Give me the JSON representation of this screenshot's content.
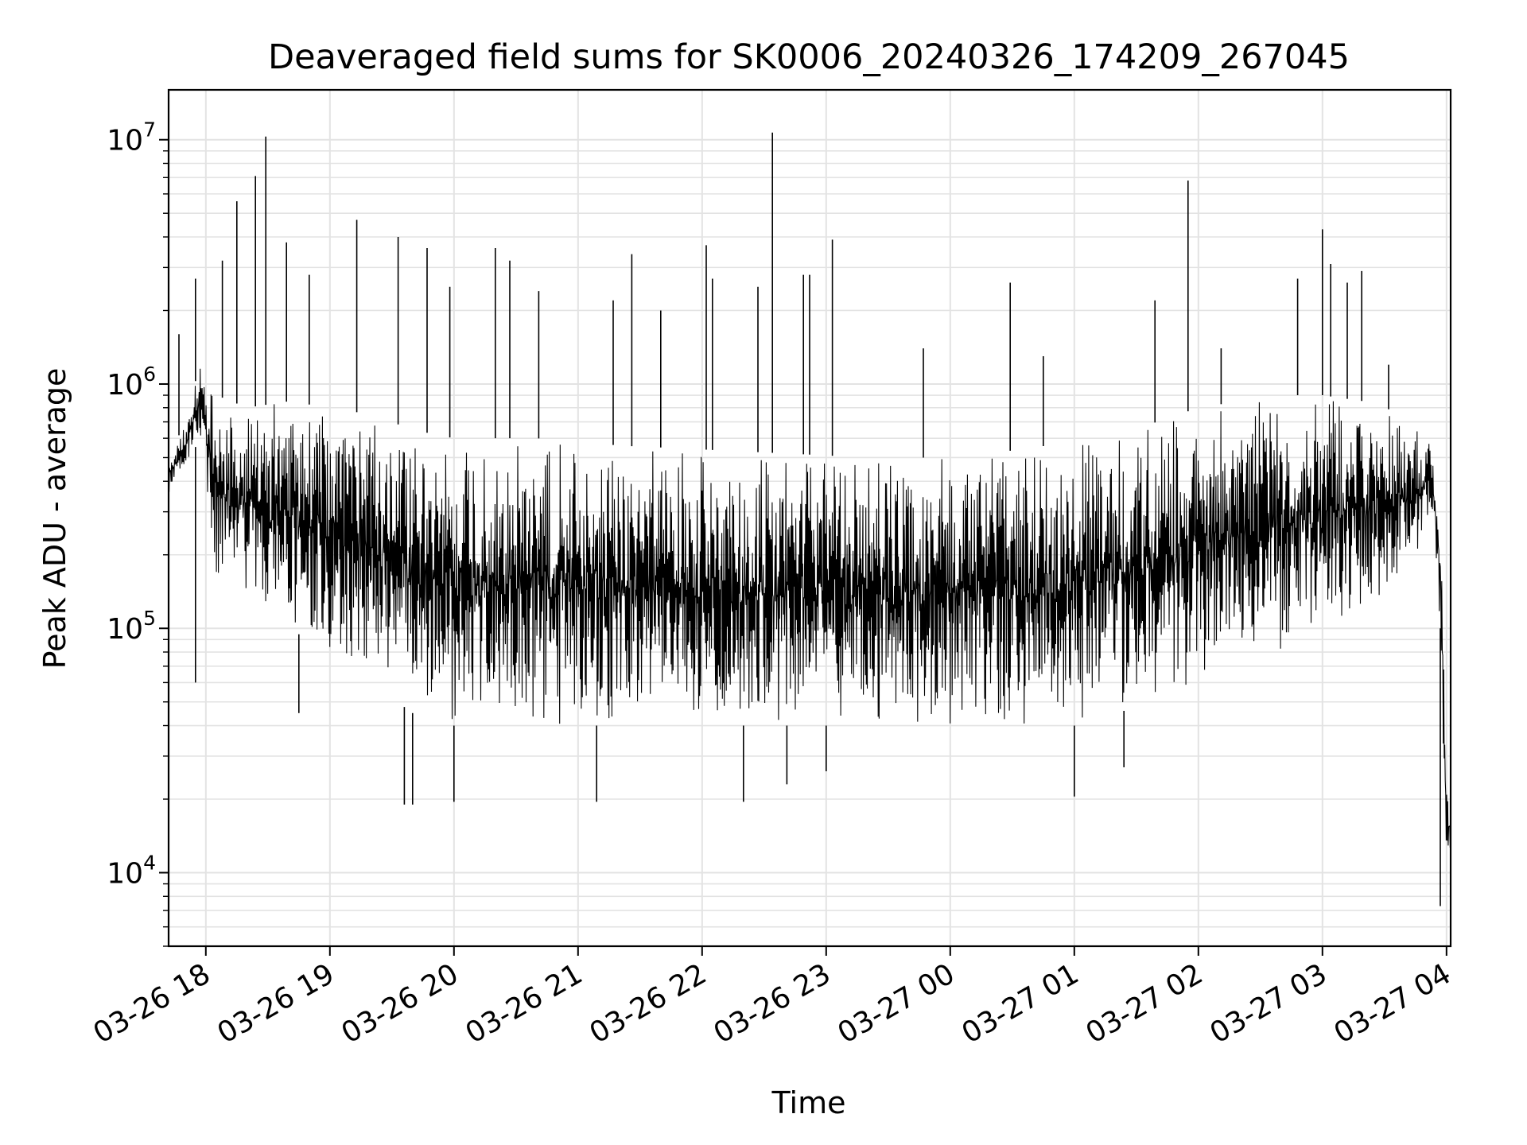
{
  "chart_data": {
    "type": "line",
    "title": "Deaveraged field sums for SK0006_20240326_174209_267045",
    "xlabel": "Time",
    "ylabel": "Peak ADU - average",
    "x_scale": "time",
    "y_scale": "log",
    "xlim": [
      "2024-03-26T17:42",
      "2024-03-27T04:02"
    ],
    "ylim": [
      5000,
      16000000
    ],
    "grid": true,
    "line_color": "#000000",
    "grid_color": "#e3e3e3",
    "x_ticks": [
      {
        "t": "2024-03-26T18:00",
        "label": "03-26 18"
      },
      {
        "t": "2024-03-26T19:00",
        "label": "03-26 19"
      },
      {
        "t": "2024-03-26T20:00",
        "label": "03-26 20"
      },
      {
        "t": "2024-03-26T21:00",
        "label": "03-26 21"
      },
      {
        "t": "2024-03-26T22:00",
        "label": "03-26 22"
      },
      {
        "t": "2024-03-26T23:00",
        "label": "03-26 23"
      },
      {
        "t": "2024-03-27T00:00",
        "label": "03-27 00"
      },
      {
        "t": "2024-03-27T01:00",
        "label": "03-27 01"
      },
      {
        "t": "2024-03-27T02:00",
        "label": "03-27 02"
      },
      {
        "t": "2024-03-27T03:00",
        "label": "03-27 03"
      },
      {
        "t": "2024-03-27T04:00",
        "label": "03-27 04"
      }
    ],
    "y_ticks": [
      {
        "value": 10000,
        "base": "10",
        "exp": "4"
      },
      {
        "value": 100000,
        "base": "10",
        "exp": "5"
      },
      {
        "value": 1000000,
        "base": "10",
        "exp": "6"
      },
      {
        "value": 10000000,
        "base": "10",
        "exp": "7"
      }
    ],
    "series": [
      {
        "envelope": {
          "t": [
            "2024-03-26T17:42",
            "2024-03-26T17:50",
            "2024-03-26T17:57",
            "2024-03-26T18:05",
            "2024-03-26T18:20",
            "2024-03-26T18:40",
            "2024-03-26T19:00",
            "2024-03-26T19:20",
            "2024-03-26T19:40",
            "2024-03-26T20:00",
            "2024-03-26T20:20",
            "2024-03-26T20:40",
            "2024-03-26T21:00",
            "2024-03-26T21:20",
            "2024-03-26T21:40",
            "2024-03-26T22:00",
            "2024-03-26T22:20",
            "2024-03-26T22:40",
            "2024-03-26T23:00",
            "2024-03-26T23:20",
            "2024-03-26T23:40",
            "2024-03-27T00:00",
            "2024-03-27T00:20",
            "2024-03-27T00:40",
            "2024-03-27T01:00",
            "2024-03-27T01:20",
            "2024-03-27T01:40",
            "2024-03-27T02:00",
            "2024-03-27T02:20",
            "2024-03-27T02:40",
            "2024-03-27T03:00",
            "2024-03-27T03:20",
            "2024-03-27T03:40",
            "2024-03-27T03:53",
            "2024-03-27T03:57",
            "2024-03-27T04:00",
            "2024-03-27T04:02"
          ],
          "upper": [
            500000,
            700000,
            1200000,
            900000,
            800000,
            850000,
            800000,
            750000,
            650000,
            600000,
            600000,
            600000,
            580000,
            560000,
            550000,
            540000,
            530000,
            520000,
            510000,
            500000,
            500000,
            500000,
            520000,
            550000,
            580000,
            620000,
            700000,
            800000,
            850000,
            900000,
            900000,
            850000,
            750000,
            550000,
            300000,
            25000,
            20000
          ],
          "lower": [
            350000,
            450000,
            600000,
            150000,
            120000,
            100000,
            80000,
            60000,
            45000,
            40000,
            40000,
            40000,
            40000,
            40000,
            40000,
            40000,
            40000,
            40000,
            40000,
            40000,
            40000,
            40000,
            40000,
            40000,
            40000,
            45000,
            50000,
            60000,
            70000,
            80000,
            90000,
            110000,
            150000,
            300000,
            100000,
            9000,
            12000
          ]
        },
        "spikes": [
          {
            "t": "2024-03-26T17:47",
            "value": 1600000
          },
          {
            "t": "2024-03-26T17:55",
            "value": 2700000
          },
          {
            "t": "2024-03-26T18:08",
            "value": 3200000
          },
          {
            "t": "2024-03-26T18:15",
            "value": 5600000
          },
          {
            "t": "2024-03-26T18:24",
            "value": 7100000
          },
          {
            "t": "2024-03-26T18:29",
            "value": 10300000
          },
          {
            "t": "2024-03-26T18:39",
            "value": 3800000
          },
          {
            "t": "2024-03-26T18:50",
            "value": 2800000
          },
          {
            "t": "2024-03-26T19:13",
            "value": 4700000
          },
          {
            "t": "2024-03-26T19:33",
            "value": 4000000
          },
          {
            "t": "2024-03-26T19:47",
            "value": 3600000
          },
          {
            "t": "2024-03-26T19:58",
            "value": 2500000
          },
          {
            "t": "2024-03-26T20:20",
            "value": 3600000
          },
          {
            "t": "2024-03-26T20:27",
            "value": 3200000
          },
          {
            "t": "2024-03-26T20:41",
            "value": 2400000
          },
          {
            "t": "2024-03-26T21:17",
            "value": 2200000
          },
          {
            "t": "2024-03-26T21:26",
            "value": 3400000
          },
          {
            "t": "2024-03-26T21:40",
            "value": 2000000
          },
          {
            "t": "2024-03-26T22:02",
            "value": 3700000
          },
          {
            "t": "2024-03-26T22:05",
            "value": 2700000
          },
          {
            "t": "2024-03-26T22:27",
            "value": 2500000
          },
          {
            "t": "2024-03-26T22:34",
            "value": 10700000
          },
          {
            "t": "2024-03-26T22:49",
            "value": 2800000
          },
          {
            "t": "2024-03-26T22:52",
            "value": 2800000
          },
          {
            "t": "2024-03-26T23:03",
            "value": 3900000
          },
          {
            "t": "2024-03-26T23:47",
            "value": 1400000
          },
          {
            "t": "2024-03-27T00:29",
            "value": 2600000
          },
          {
            "t": "2024-03-27T00:45",
            "value": 1300000
          },
          {
            "t": "2024-03-27T01:39",
            "value": 2200000
          },
          {
            "t": "2024-03-27T01:55",
            "value": 6800000
          },
          {
            "t": "2024-03-27T02:11",
            "value": 1400000
          },
          {
            "t": "2024-03-27T02:48",
            "value": 2700000
          },
          {
            "t": "2024-03-27T03:00",
            "value": 4300000
          },
          {
            "t": "2024-03-27T03:04",
            "value": 3100000
          },
          {
            "t": "2024-03-27T03:12",
            "value": 2600000
          },
          {
            "t": "2024-03-27T03:19",
            "value": 2900000
          },
          {
            "t": "2024-03-27T03:32",
            "value": 1200000
          }
        ],
        "dips": [
          {
            "t": "2024-03-26T17:55",
            "value": 60000
          },
          {
            "t": "2024-03-26T18:45",
            "value": 45000
          },
          {
            "t": "2024-03-26T19:36",
            "value": 19000
          },
          {
            "t": "2024-03-26T19:40",
            "value": 19000
          },
          {
            "t": "2024-03-26T20:00",
            "value": 19500
          },
          {
            "t": "2024-03-26T21:09",
            "value": 19500
          },
          {
            "t": "2024-03-26T22:20",
            "value": 19500
          },
          {
            "t": "2024-03-26T22:41",
            "value": 23000
          },
          {
            "t": "2024-03-26T23:00",
            "value": 26000
          },
          {
            "t": "2024-03-27T01:00",
            "value": 20500
          },
          {
            "t": "2024-03-27T01:24",
            "value": 27000
          },
          {
            "t": "2024-03-27T03:57",
            "value": 7300
          }
        ]
      }
    ]
  }
}
